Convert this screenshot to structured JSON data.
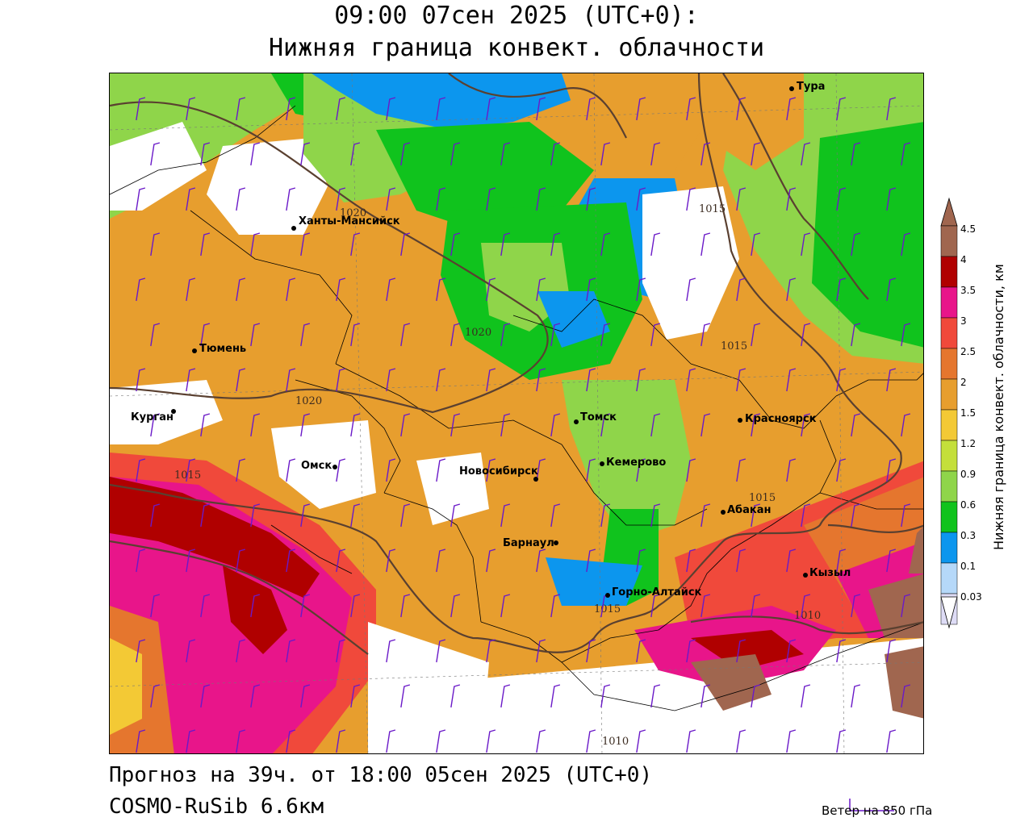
{
  "header": {
    "line1": "09:00 07сен 2025 (UTC+0):",
    "line2": "Нижняя граница конвект. облачности"
  },
  "footer": {
    "forecast": "Прогноз на 39ч. от 18:00 05сен 2025 (UTC+0)",
    "model": "COSMO-RuSib 6.6км",
    "wind_key": "Ветер на 850 гПа"
  },
  "legend": {
    "title": "Нижняя граница конвект. облачности, км",
    "ticks": [
      "4.5",
      "4",
      "3.5",
      "3",
      "2.5",
      "2",
      "1.5",
      "1.2",
      "0.9",
      "0.6",
      "0.3",
      "0.1",
      "0.03"
    ],
    "colors": [
      "#a0664f",
      "#b00000",
      "#e8158a",
      "#f0493b",
      "#e5762e",
      "#e79e2e",
      "#f3c935",
      "#c4df3a",
      "#8fd54a",
      "#10c31d",
      "#0c96ee",
      "#b5d8f9",
      "#dedcf6"
    ]
  },
  "cities": [
    {
      "name": "Тура"
    },
    {
      "name": "Ханты-Мансийск"
    },
    {
      "name": "Тюмень"
    },
    {
      "name": "Курган"
    },
    {
      "name": "Омск"
    },
    {
      "name": "Новосибирск"
    },
    {
      "name": "Томск"
    },
    {
      "name": "Кемерово"
    },
    {
      "name": "Красноярск"
    },
    {
      "name": "Абакан"
    },
    {
      "name": "Барнаул"
    },
    {
      "name": "Горно-Алтайск"
    },
    {
      "name": "Кызыл"
    }
  ],
  "isobars": [
    "1020",
    "1020",
    "1020",
    "1015",
    "1015",
    "1015",
    "1015",
    "1015",
    "1010",
    "1010"
  ]
}
